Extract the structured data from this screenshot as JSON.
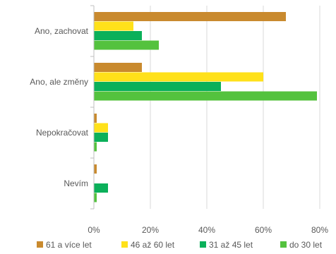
{
  "chart_data": {
    "type": "bar",
    "orientation": "horizontal",
    "categories": [
      "Ano, zachovat",
      "Ano, ale změny",
      "Nepokračovat",
      "Nevím"
    ],
    "series": [
      {
        "name": "61 a více let",
        "color": "#C98A2E",
        "values": [
          68,
          17,
          1,
          1
        ]
      },
      {
        "name": "46 až 60 let",
        "color": "#FFE11A",
        "values": [
          14,
          60,
          5,
          0
        ]
      },
      {
        "name": "31 až 45 let",
        "color": "#0BB05A",
        "values": [
          17,
          45,
          5,
          5
        ]
      },
      {
        "name": "do 30 let",
        "color": "#54C23E",
        "values": [
          23,
          79,
          1,
          1
        ]
      }
    ],
    "x_ticks": [
      "0%",
      "20%",
      "40%",
      "60%",
      "80%"
    ],
    "xlim": [
      0,
      80
    ],
    "grid": true,
    "legend_position": "bottom"
  }
}
